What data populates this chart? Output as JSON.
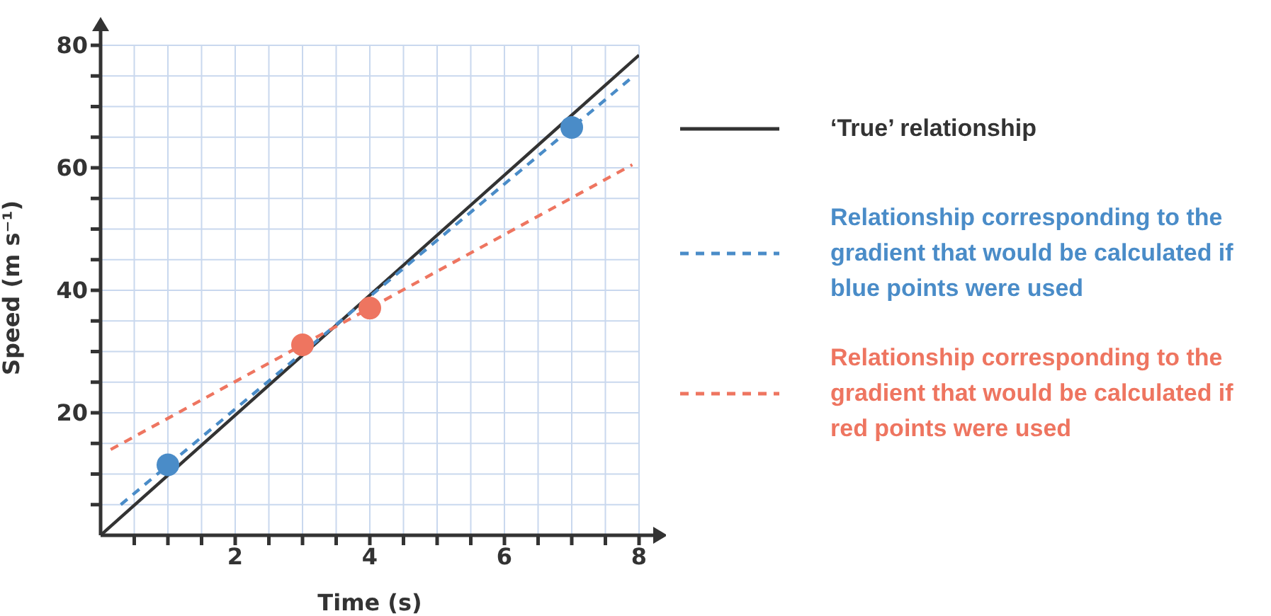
{
  "chart_data": {
    "type": "line",
    "xlabel": "Time (s)",
    "ylabel": "Speed (m s⁻¹)",
    "xlim": [
      0,
      8
    ],
    "ylim": [
      0,
      80
    ],
    "xticks": [
      {
        "value": 0.5,
        "label": null
      },
      {
        "value": 1,
        "label": null
      },
      {
        "value": 1.5,
        "label": null
      },
      2,
      {
        "value": 2.5,
        "label": null
      },
      {
        "value": 3,
        "label": null
      },
      {
        "value": 3.5,
        "label": null
      },
      4,
      {
        "value": 4.5,
        "label": null
      },
      {
        "value": 5,
        "label": null
      },
      {
        "value": 5.5,
        "label": null
      },
      6,
      {
        "value": 6.5,
        "label": null
      },
      {
        "value": 7,
        "label": null
      },
      {
        "value": 7.5,
        "label": null
      },
      8
    ],
    "yticks": [
      {
        "value": 5,
        "label": null
      },
      {
        "value": 10,
        "label": null
      },
      {
        "value": 15,
        "label": null
      },
      20,
      {
        "value": 25,
        "label": null
      },
      {
        "value": 30,
        "label": null
      },
      {
        "value": 35,
        "label": null
      },
      40,
      {
        "value": 45,
        "label": null
      },
      {
        "value": 50,
        "label": null
      },
      {
        "value": 55,
        "label": null
      },
      60,
      {
        "value": 65,
        "label": null
      },
      {
        "value": 70,
        "label": null
      },
      {
        "value": 75,
        "label": null
      },
      80
    ],
    "grid": true,
    "legend": "right",
    "series": [
      {
        "name": "‘True’ relationship",
        "color": "#333333",
        "line_style": "solid",
        "marker": "none",
        "x": [
          0,
          8
        ],
        "values": [
          0,
          78.4
        ]
      },
      {
        "name": "Relationship corresponding to the gradient that would be calculated if blue points were used",
        "color": "#4a8cc8",
        "line_style": "dashed",
        "marker": "none",
        "x": [
          0.3,
          7.9
        ],
        "values": [
          5,
          74.8
        ]
      },
      {
        "name": "Relationship corresponding to the gradient that would be calculated if red points were used",
        "color": "#ee7560",
        "line_style": "dashed",
        "marker": "none",
        "x": [
          0.15,
          7.9
        ],
        "values": [
          14,
          60.5
        ]
      },
      {
        "type": "scatter",
        "color": "#4a8cc8",
        "marker": "circle",
        "x": [
          1,
          7
        ],
        "values": [
          11.5,
          66.6
        ]
      },
      {
        "type": "scatter",
        "color": "#ee7560",
        "marker": "circle",
        "x": [
          3,
          4
        ],
        "values": [
          31.1,
          37.1
        ]
      }
    ]
  }
}
